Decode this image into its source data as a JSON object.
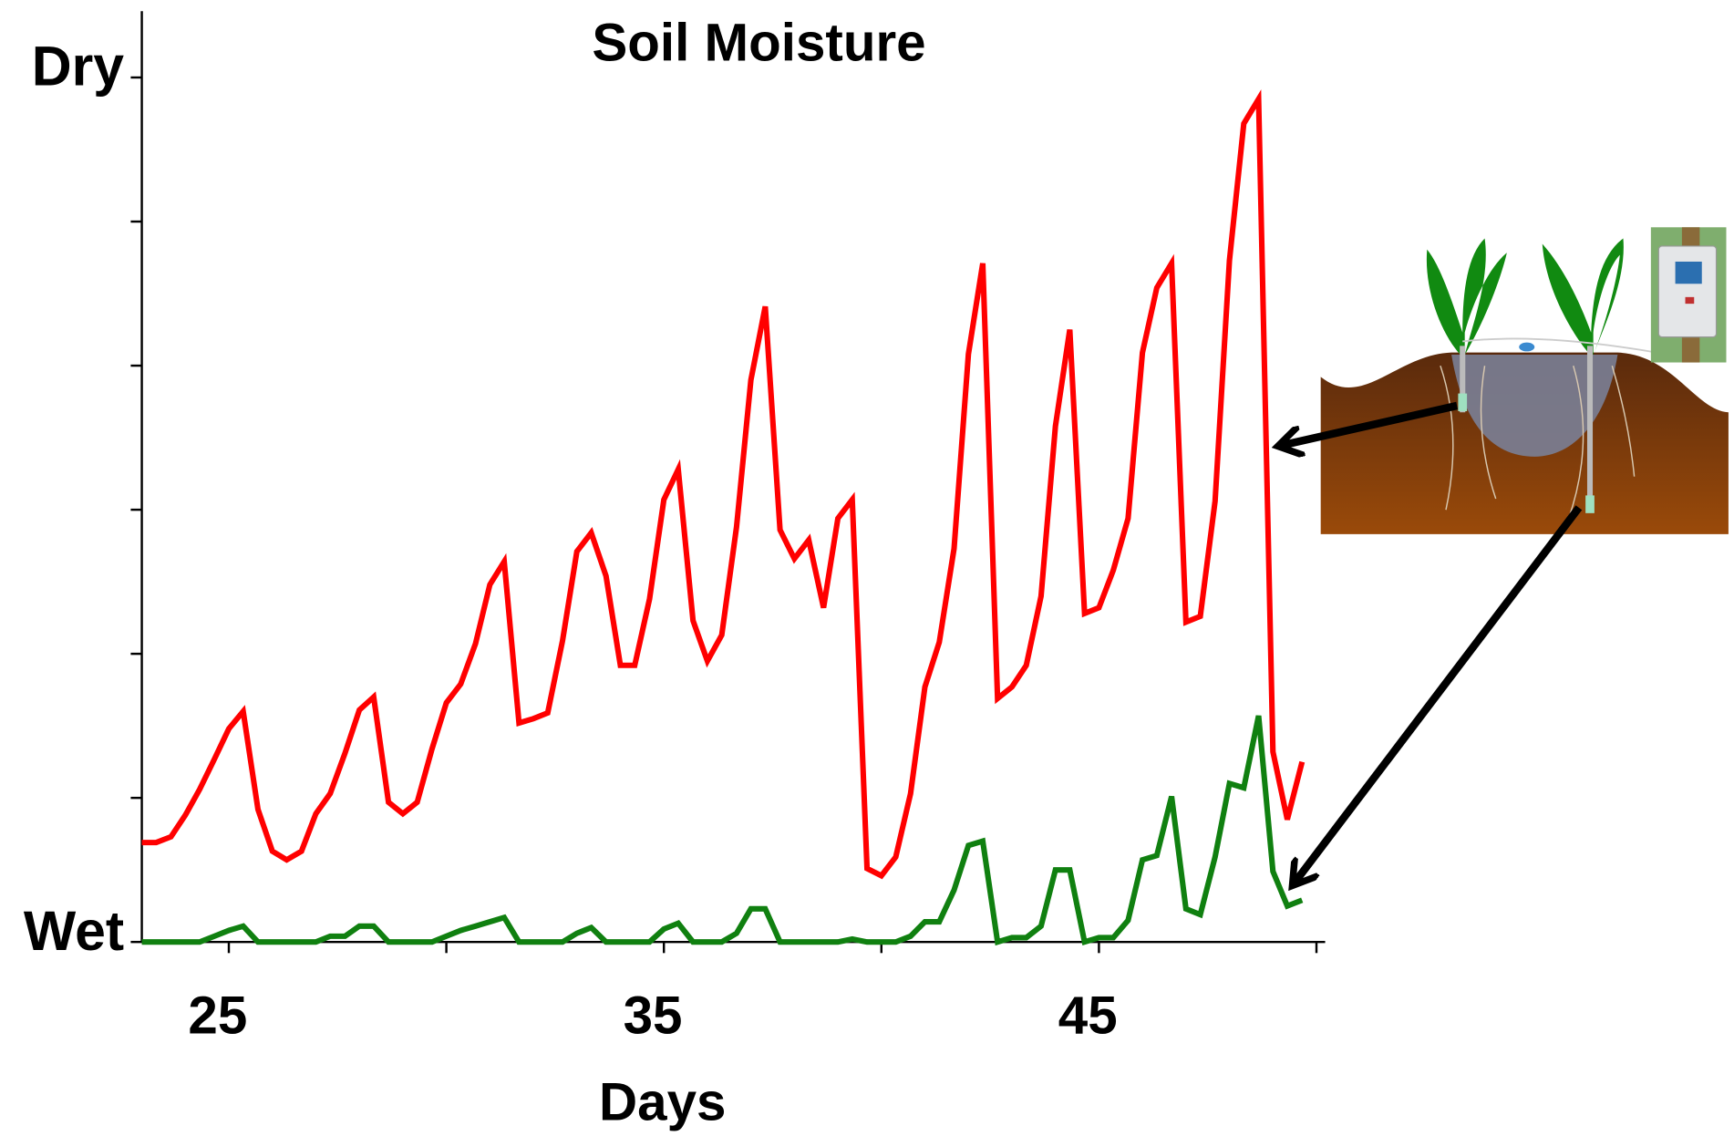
{
  "chart_data": {
    "type": "line",
    "title": "Soil Moisture",
    "x_label": "Days",
    "xlim": [
      23,
      50.2
    ],
    "xticks": [
      25,
      35,
      45
    ],
    "xminor_ticks": [
      30,
      40,
      50
    ],
    "ylim": [
      0,
      6.46
    ],
    "yticks": [
      {
        "value": 0,
        "label": "Wet"
      },
      {
        "value": 6,
        "label": "Dry"
      }
    ],
    "yminor_ticks": [
      1,
      2,
      3,
      4,
      5
    ],
    "x": [
      23,
      23.33,
      23.67,
      24,
      24.33,
      24.67,
      25,
      25.33,
      25.67,
      26,
      26.33,
      26.67,
      27,
      27.33,
      27.67,
      28,
      28.33,
      28.67,
      29,
      29.33,
      29.67,
      30,
      30.33,
      30.67,
      31,
      31.33,
      31.67,
      32,
      32.33,
      32.67,
      33,
      33.33,
      33.67,
      34,
      34.33,
      34.67,
      35,
      35.33,
      35.67,
      36,
      36.33,
      36.67,
      37,
      37.33,
      37.67,
      38,
      38.33,
      38.67,
      39,
      39.33,
      39.67,
      40,
      40.33,
      40.67,
      41,
      41.33,
      41.67,
      42,
      42.33,
      42.67,
      43,
      43.33,
      43.67,
      44,
      44.33,
      44.67,
      45,
      45.33,
      45.67,
      46,
      46.33,
      46.67,
      47,
      47.33,
      47.67,
      48,
      48.33,
      48.67,
      49,
      49.33,
      49.67
    ],
    "series": [
      {
        "color": "#ff0000",
        "values": [
          0.69,
          0.69,
          0.73,
          0.88,
          1.06,
          1.27,
          1.48,
          1.6,
          0.92,
          0.63,
          0.57,
          0.63,
          0.89,
          1.03,
          1.31,
          1.61,
          1.7,
          0.97,
          0.89,
          0.97,
          1.34,
          1.66,
          1.79,
          2.07,
          2.48,
          2.64,
          1.52,
          1.55,
          1.59,
          2.09,
          2.71,
          2.84,
          2.54,
          1.92,
          1.92,
          2.38,
          3.07,
          3.28,
          2.23,
          1.95,
          2.13,
          2.88,
          3.9,
          4.41,
          2.86,
          2.66,
          2.79,
          2.32,
          2.94,
          3.07,
          0.51,
          0.46,
          0.59,
          1.03,
          1.77,
          2.08,
          2.73,
          4.08,
          4.71,
          1.69,
          1.77,
          1.92,
          2.4,
          3.58,
          4.25,
          2.28,
          2.32,
          2.58,
          2.94,
          4.09,
          4.54,
          4.71,
          2.22,
          2.26,
          3.06,
          4.73,
          5.68,
          5.85,
          1.32,
          0.85,
          1.25
        ]
      },
      {
        "color": "#108010",
        "values": [
          0,
          0,
          0,
          0,
          0,
          0.04,
          0.08,
          0.11,
          0,
          0,
          0,
          0,
          0,
          0.04,
          0.04,
          0.11,
          0.11,
          0,
          0,
          0,
          0,
          0.04,
          0.08,
          0.11,
          0.14,
          0.17,
          0,
          0,
          0,
          0,
          0.06,
          0.1,
          0,
          0,
          0,
          0,
          0.09,
          0.13,
          0,
          0,
          0,
          0.06,
          0.23,
          0.23,
          0,
          0,
          0,
          0,
          0,
          0.02,
          0,
          0,
          0,
          0.04,
          0.14,
          0.14,
          0.36,
          0.67,
          0.7,
          0,
          0.03,
          0.03,
          0.11,
          0.5,
          0.5,
          0,
          0.03,
          0.03,
          0.15,
          0.57,
          0.6,
          1.01,
          0.23,
          0.19,
          0.59,
          1.1,
          1.07,
          1.57,
          0.49,
          0.25,
          0.29
        ]
      }
    ]
  }
}
